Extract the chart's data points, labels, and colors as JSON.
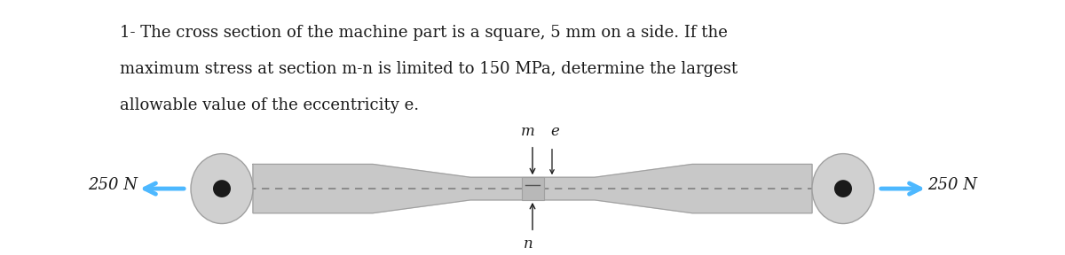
{
  "text_problem": "1- The cross section of the machine part is a square, 5 mm on a side. If the\nmaximum stress at section m-n is limited to 150 MPa, determine the largest\nallowable value of the eccentricity e.",
  "label_250N_left": "250 N",
  "label_250N_right": "250 N",
  "label_m": "m",
  "label_n": "n",
  "label_e": "e",
  "bg_color": "#ffffff",
  "bar_color": "#c8c8c8",
  "bar_dark": "#a0a0a0",
  "arrow_color": "#4db8ff",
  "dashed_color": "#808080",
  "dot_color": "#1a1a1a",
  "disk_color": "#d0d0d0",
  "text_color": "#1a1a1a",
  "font_size_problem": 13,
  "font_size_label": 13,
  "font_size_mn": 12
}
